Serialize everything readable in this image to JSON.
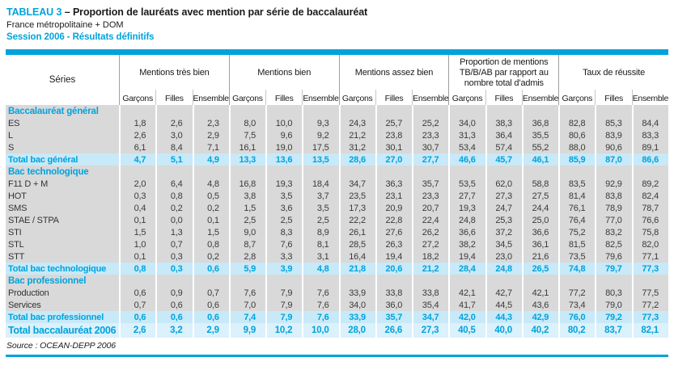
{
  "header": {
    "table_label": "TABLEAU 3",
    "separator": " – ",
    "title": "Proportion de lauréats avec mention par série de baccalauréat",
    "region": "France métropolitaine + DOM",
    "session": "Session 2006 - Résultats définitifs"
  },
  "table": {
    "series_header": "Séries",
    "sub_headers": [
      "Garçons",
      "Filles",
      "Ensemble"
    ],
    "groups": [
      {
        "label": "Mentions très bien"
      },
      {
        "label": "Mentions bien"
      },
      {
        "label": "Mentions assez bien"
      },
      {
        "label": "Proportion de mentions TB/B/AB par rapport au nombre total d’admis"
      },
      {
        "label": "Taux de réussite"
      }
    ],
    "rows": [
      {
        "type": "section",
        "label": "Baccalauréat général",
        "values": []
      },
      {
        "type": "data",
        "label": "ES",
        "values": [
          "1,8",
          "2,6",
          "2,3",
          "8,0",
          "10,0",
          "9,3",
          "24,3",
          "25,7",
          "25,2",
          "34,0",
          "38,3",
          "36,8",
          "82,8",
          "85,3",
          "84,4"
        ]
      },
      {
        "type": "data",
        "label": "L",
        "values": [
          "2,6",
          "3,0",
          "2,9",
          "7,5",
          "9,6",
          "9,2",
          "21,2",
          "23,8",
          "23,3",
          "31,3",
          "36,4",
          "35,5",
          "80,6",
          "83,9",
          "83,3"
        ]
      },
      {
        "type": "data",
        "label": "S",
        "values": [
          "6,1",
          "8,4",
          "7,1",
          "16,1",
          "19,0",
          "17,5",
          "31,2",
          "30,1",
          "30,7",
          "53,4",
          "57,4",
          "55,2",
          "88,0",
          "90,6",
          "89,1"
        ]
      },
      {
        "type": "total",
        "label": "Total bac général",
        "values": [
          "4,7",
          "5,1",
          "4,9",
          "13,3",
          "13,6",
          "13,5",
          "28,6",
          "27,0",
          "27,7",
          "46,6",
          "45,7",
          "46,1",
          "85,9",
          "87,0",
          "86,6"
        ]
      },
      {
        "type": "section",
        "label": "Bac technologique",
        "values": []
      },
      {
        "type": "data",
        "label": "F11 D + M",
        "values": [
          "2,0",
          "6,4",
          "4,8",
          "16,8",
          "19,3",
          "18,4",
          "34,7",
          "36,3",
          "35,7",
          "53,5",
          "62,0",
          "58,8",
          "83,5",
          "92,9",
          "89,2"
        ]
      },
      {
        "type": "data",
        "label": "HOT",
        "values": [
          "0,3",
          "0,8",
          "0,5",
          "3,8",
          "3,5",
          "3,7",
          "23,5",
          "23,1",
          "23,3",
          "27,7",
          "27,3",
          "27,5",
          "81,4",
          "83,8",
          "82,4"
        ]
      },
      {
        "type": "data",
        "label": "SMS",
        "values": [
          "0,4",
          "0,2",
          "0,2",
          "1,5",
          "3,6",
          "3,5",
          "17,3",
          "20,9",
          "20,7",
          "19,3",
          "24,7",
          "24,4",
          "76,1",
          "78,9",
          "78,7"
        ]
      },
      {
        "type": "data",
        "label": "STAE / STPA",
        "values": [
          "0,1",
          "0,0",
          "0,1",
          "2,5",
          "2,5",
          "2,5",
          "22,2",
          "22,8",
          "22,4",
          "24,8",
          "25,3",
          "25,0",
          "76,4",
          "77,0",
          "76,6"
        ]
      },
      {
        "type": "data",
        "label": "STI",
        "values": [
          "1,5",
          "1,3",
          "1,5",
          "9,0",
          "8,3",
          "8,9",
          "26,1",
          "27,6",
          "26,2",
          "36,6",
          "37,2",
          "36,6",
          "75,2",
          "83,2",
          "75,8"
        ]
      },
      {
        "type": "data",
        "label": "STL",
        "values": [
          "1,0",
          "0,7",
          "0,8",
          "8,7",
          "7,6",
          "8,1",
          "28,5",
          "26,3",
          "27,2",
          "38,2",
          "34,5",
          "36,1",
          "81,5",
          "82,5",
          "82,0"
        ]
      },
      {
        "type": "data",
        "label": "STT",
        "values": [
          "0,1",
          "0,3",
          "0,2",
          "2,8",
          "3,3",
          "3,1",
          "16,4",
          "19,4",
          "18,2",
          "19,4",
          "23,0",
          "21,6",
          "73,5",
          "79,6",
          "77,1"
        ]
      },
      {
        "type": "total",
        "label": "Total bac technologique",
        "values": [
          "0,8",
          "0,3",
          "0,6",
          "5,9",
          "3,9",
          "4,8",
          "21,8",
          "20,6",
          "21,2",
          "28,4",
          "24,8",
          "26,5",
          "74,8",
          "79,7",
          "77,3"
        ]
      },
      {
        "type": "section",
        "label": "Bac professionnel",
        "values": []
      },
      {
        "type": "data",
        "label": "Production",
        "values": [
          "0,6",
          "0,9",
          "0,7",
          "7,6",
          "7,9",
          "7,6",
          "33,9",
          "33,8",
          "33,8",
          "42,1",
          "42,7",
          "42,1",
          "77,2",
          "80,3",
          "77,5"
        ]
      },
      {
        "type": "data",
        "label": "Services",
        "values": [
          "0,7",
          "0,6",
          "0,6",
          "7,0",
          "7,9",
          "7,6",
          "34,0",
          "36,0",
          "35,4",
          "41,7",
          "44,5",
          "43,6",
          "73,4",
          "79,0",
          "77,2"
        ]
      },
      {
        "type": "total",
        "label": "Total bac professionnel",
        "values": [
          "0,6",
          "0,6",
          "0,6",
          "7,4",
          "7,9",
          "7,6",
          "33,9",
          "35,7",
          "34,7",
          "42,0",
          "44,3",
          "42,9",
          "76,0",
          "79,2",
          "77,3"
        ]
      },
      {
        "type": "grand",
        "label": "Total baccalauréat 2006",
        "values": [
          "2,6",
          "3,2",
          "2,9",
          "9,9",
          "10,2",
          "10,0",
          "28,0",
          "26,6",
          "27,3",
          "40,5",
          "40,0",
          "40,2",
          "80,2",
          "83,7",
          "82,1"
        ]
      }
    ]
  },
  "footer": {
    "source": "Source : OCEAN-DEPP 2006"
  },
  "colors": {
    "accent": "#00a3dc",
    "body_row_bg": "#d9d9d9",
    "total_row_bg": "#c8e9f8",
    "grand_total_row_bg": "#dbf1fc"
  }
}
